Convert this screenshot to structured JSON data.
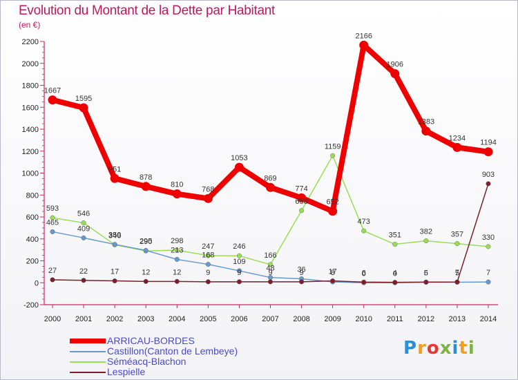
{
  "title": "Evolution du Montant de la Dette par Habitant",
  "unit": "(en €)",
  "logo_text": "Proxiti",
  "chart_data": {
    "type": "line",
    "title": "Evolution du Montant de la Dette par Habitant",
    "subtitle": "(en €)",
    "xlabel": "",
    "ylabel": "",
    "x": [
      2000,
      2001,
      2002,
      2003,
      2004,
      2005,
      2006,
      2007,
      2008,
      2009,
      2010,
      2011,
      2012,
      2013,
      2014
    ],
    "ylim": [
      -200,
      2200
    ],
    "yticks": [
      -200,
      0,
      200,
      400,
      600,
      800,
      1000,
      1200,
      1400,
      1600,
      1800,
      2000,
      2200
    ],
    "grid": false,
    "legend_position": "bottom-left",
    "series": [
      {
        "name": "ARRICAU-BORDES",
        "color": "#ee0000",
        "values": [
          1667,
          1595,
          951,
          878,
          810,
          768,
          1053,
          869,
          774,
          652,
          2166,
          1906,
          1383,
          1234,
          1194
        ]
      },
      {
        "name": "Castillon(Canton de Lembeye)",
        "color": "#6699cc",
        "values": [
          465,
          409,
          350,
          295,
          213,
          168,
          109,
          48,
          36,
          8,
          0,
          0,
          5,
          5,
          7
        ]
      },
      {
        "name": "Séméacq-Blachon",
        "color": "#99dd55",
        "values": [
          593,
          546,
          346,
          290,
          298,
          247,
          246,
          166,
          658,
          1159,
          473,
          351,
          382,
          357,
          330
        ]
      },
      {
        "name": "Lespielle",
        "color": "#7a1f2b",
        "values": [
          27,
          22,
          17,
          12,
          12,
          9,
          9,
          9,
          9,
          17,
          6,
          4,
          6,
          7,
          903
        ]
      }
    ]
  }
}
